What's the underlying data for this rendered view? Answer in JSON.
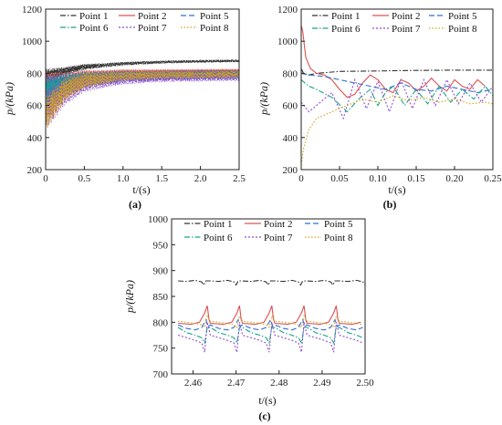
{
  "figure": {
    "series_styles": [
      {
        "name": "Point 1",
        "color": "#333333",
        "dash": "6,2,1.5,2"
      },
      {
        "name": "Point 2",
        "color": "#d9534f",
        "dash": ""
      },
      {
        "name": "Point 5",
        "color": "#2f6fd6",
        "dash": "6,3"
      },
      {
        "name": "Point 6",
        "color": "#1aa38a",
        "dash": "6,2,1.5,2"
      },
      {
        "name": "Point 7",
        "color": "#8a4fd1",
        "dash": "2,2"
      },
      {
        "name": "Point 8",
        "color": "#d4a21a",
        "dash": "1.5,2"
      }
    ]
  },
  "chart_data": [
    {
      "type": "line",
      "panel_label": "(a)",
      "xlabel": "t/(s)",
      "ylabel": "p/(kPa)",
      "xlim": [
        0,
        2.5
      ],
      "ylim": [
        200,
        1200
      ],
      "xticks": [
        "0",
        "0.5",
        "1.0",
        "1.5",
        "2.0",
        "2.5"
      ],
      "yticks": [
        "200",
        "400",
        "600",
        "800",
        "1000",
        "1200"
      ],
      "legend": [
        "Point 1",
        "Point 2",
        "Point 5",
        "Point 6",
        "Point 7",
        "Point 8"
      ],
      "series": [
        {
          "name": "Point 1",
          "mean": [
            [
              0.02,
              790
            ],
            [
              0.25,
              815
            ],
            [
              0.5,
              840
            ],
            [
              1.0,
              860
            ],
            [
              1.5,
              870
            ],
            [
              2.0,
              875
            ],
            [
              2.5,
              878
            ]
          ],
          "amp": [
            40,
            8
          ]
        },
        {
          "name": "Point 2",
          "mean": [
            [
              0.02,
              720
            ],
            [
              0.25,
              750
            ],
            [
              0.5,
              780
            ],
            [
              1.0,
              800
            ],
            [
              1.5,
              805
            ],
            [
              2.0,
              808
            ],
            [
              2.5,
              810
            ]
          ],
          "amp": [
            90,
            18
          ]
        },
        {
          "name": "Point 5",
          "mean": [
            [
              0.02,
              700
            ],
            [
              0.25,
              740
            ],
            [
              0.5,
              770
            ],
            [
              1.0,
              790
            ],
            [
              1.5,
              795
            ],
            [
              2.0,
              798
            ],
            [
              2.5,
              800
            ]
          ],
          "amp": [
            90,
            20
          ]
        },
        {
          "name": "Point 6",
          "mean": [
            [
              0.02,
              660
            ],
            [
              0.25,
              720
            ],
            [
              0.5,
              760
            ],
            [
              1.0,
              780
            ],
            [
              1.5,
              785
            ],
            [
              2.0,
              788
            ],
            [
              2.5,
              790
            ]
          ],
          "amp": [
            110,
            25
          ]
        },
        {
          "name": "Point 7",
          "mean": [
            [
              0.02,
              580
            ],
            [
              0.25,
              690
            ],
            [
              0.5,
              745
            ],
            [
              1.0,
              770
            ],
            [
              1.5,
              778
            ],
            [
              2.0,
              780
            ],
            [
              2.5,
              782
            ]
          ],
          "amp": [
            130,
            30
          ]
        },
        {
          "name": "Point 8",
          "mean": [
            [
              0.02,
              560
            ],
            [
              0.25,
              700
            ],
            [
              0.5,
              755
            ],
            [
              1.0,
              785
            ],
            [
              1.5,
              790
            ],
            [
              2.0,
              792
            ],
            [
              2.5,
              795
            ]
          ],
          "amp": [
            110,
            22
          ]
        }
      ]
    },
    {
      "type": "line",
      "panel_label": "(b)",
      "xlabel": "t/(s)",
      "ylabel": "p/(kPa)",
      "xlim": [
        0,
        0.25
      ],
      "ylim": [
        200,
        1200
      ],
      "xticks": [
        "0",
        "0.05",
        "0.10",
        "0.15",
        "0.20",
        "0.25"
      ],
      "yticks": [
        "200",
        "400",
        "600",
        "800",
        "1000",
        "1200"
      ],
      "legend": [
        "Point 1",
        "Point 2",
        "Point 5",
        "Point 6",
        "Point 7",
        "Point 8"
      ],
      "series": [
        {
          "name": "Point 1",
          "x": [
            0,
            0.003,
            0.01,
            0.02,
            0.05,
            0.1,
            0.15,
            0.2,
            0.25
          ],
          "y": [
            830,
            800,
            790,
            800,
            812,
            815,
            818,
            820,
            820
          ]
        },
        {
          "name": "Point 2",
          "x": [
            0,
            0.002,
            0.006,
            0.012,
            0.02,
            0.03,
            0.04,
            0.05,
            0.06,
            0.07,
            0.08,
            0.09,
            0.1,
            0.11,
            0.12,
            0.13,
            0.14,
            0.15,
            0.16,
            0.17,
            0.18,
            0.19,
            0.2,
            0.21,
            0.22,
            0.23,
            0.24
          ],
          "y": [
            1100,
            1060,
            900,
            830,
            800,
            790,
            760,
            700,
            650,
            670,
            740,
            790,
            760,
            700,
            680,
            760,
            740,
            690,
            720,
            770,
            720,
            690,
            760,
            720,
            700,
            760,
            720
          ]
        },
        {
          "name": "Point 5",
          "x": [
            0,
            0.01,
            0.03,
            0.05,
            0.07,
            0.09,
            0.11,
            0.13,
            0.15,
            0.17,
            0.19,
            0.21,
            0.23,
            0.25
          ],
          "y": [
            800,
            790,
            780,
            760,
            740,
            720,
            700,
            740,
            700,
            690,
            720,
            700,
            680,
            700
          ]
        },
        {
          "name": "Point 6",
          "x": [
            0,
            0.01,
            0.02,
            0.04,
            0.06,
            0.075,
            0.09,
            0.1,
            0.11,
            0.12,
            0.135,
            0.15,
            0.165,
            0.18,
            0.195,
            0.21,
            0.225,
            0.24,
            0.25
          ],
          "y": [
            760,
            720,
            700,
            650,
            560,
            640,
            700,
            600,
            680,
            720,
            600,
            700,
            610,
            720,
            620,
            700,
            640,
            720,
            660
          ]
        },
        {
          "name": "Point 7",
          "x": [
            0,
            0.01,
            0.025,
            0.04,
            0.055,
            0.07,
            0.085,
            0.1,
            0.115,
            0.13,
            0.145,
            0.16,
            0.175,
            0.19,
            0.205,
            0.22,
            0.235,
            0.25
          ],
          "y": [
            620,
            560,
            620,
            680,
            520,
            760,
            580,
            750,
            560,
            760,
            580,
            760,
            600,
            760,
            610,
            740,
            620,
            720
          ]
        },
        {
          "name": "Point 8",
          "x": [
            0,
            0.003,
            0.01,
            0.02,
            0.04,
            0.06,
            0.08,
            0.1,
            0.12,
            0.14,
            0.16,
            0.18,
            0.2,
            0.22,
            0.24,
            0.25
          ],
          "y": [
            230,
            330,
            450,
            520,
            560,
            600,
            640,
            620,
            660,
            630,
            650,
            620,
            640,
            610,
            620,
            610
          ]
        }
      ]
    },
    {
      "type": "line",
      "panel_label": "(c)",
      "xlabel": "t/(s)",
      "ylabel": "p/(kPa)",
      "xlim": [
        2.455,
        2.5
      ],
      "ylim": [
        700,
        1000
      ],
      "xticks": [
        "2.46",
        "2.47",
        "2.48",
        "2.49",
        "2.50"
      ],
      "yticks": [
        "700",
        "750",
        "800",
        "850",
        "900",
        "950",
        "1000"
      ],
      "legend": [
        "Point 1",
        "Point 2",
        "Point 5",
        "Point 6",
        "Point 7",
        "Point 8"
      ],
      "period": 0.0075,
      "x0": 2.4565,
      "series": [
        {
          "name": "Point 1",
          "cycle": [
            [
              0,
              880
            ],
            [
              0.002,
              879
            ],
            [
              0.004,
              881
            ],
            [
              0.0055,
              878
            ],
            [
              0.006,
              872
            ],
            [
              0.0065,
              880
            ],
            [
              0.0075,
              880
            ]
          ]
        },
        {
          "name": "Point 2",
          "cycle": [
            [
              0,
              798
            ],
            [
              0.003,
              796
            ],
            [
              0.005,
              800
            ],
            [
              0.0062,
              818
            ],
            [
              0.0068,
              832
            ],
            [
              0.0072,
              805
            ],
            [
              0.0075,
              798
            ]
          ]
        },
        {
          "name": "Point 5",
          "cycle": [
            [
              0,
              795
            ],
            [
              0.002,
              788
            ],
            [
              0.004,
              785
            ],
            [
              0.0055,
              790
            ],
            [
              0.0065,
              805
            ],
            [
              0.007,
              792
            ],
            [
              0.0075,
              795
            ]
          ]
        },
        {
          "name": "Point 6",
          "cycle": [
            [
              0,
              790
            ],
            [
              0.002,
              780
            ],
            [
              0.004,
              775
            ],
            [
              0.0055,
              770
            ],
            [
              0.0062,
              760
            ],
            [
              0.0068,
              790
            ],
            [
              0.0075,
              790
            ]
          ]
        },
        {
          "name": "Point 7",
          "cycle": [
            [
              0,
              775
            ],
            [
              0.002,
              770
            ],
            [
              0.004,
              765
            ],
            [
              0.0055,
              760
            ],
            [
              0.0062,
              742
            ],
            [
              0.0068,
              800
            ],
            [
              0.0075,
              775
            ]
          ]
        },
        {
          "name": "Point 8",
          "cycle": [
            [
              0,
              802
            ],
            [
              0.002,
              800
            ],
            [
              0.004,
              798
            ],
            [
              0.0055,
              795
            ],
            [
              0.0062,
              790
            ],
            [
              0.0068,
              812
            ],
            [
              0.0075,
              802
            ]
          ]
        }
      ]
    }
  ]
}
